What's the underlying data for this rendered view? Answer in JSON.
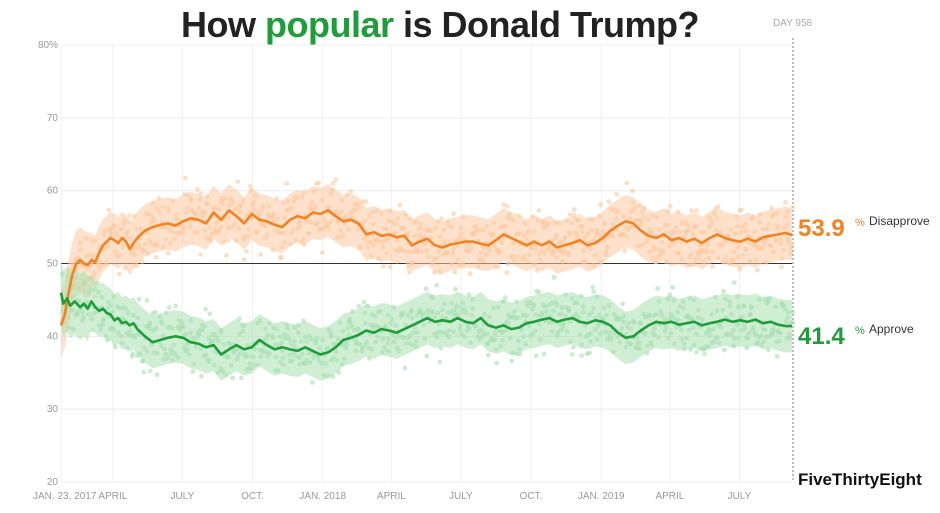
{
  "title": {
    "prefix": "How ",
    "highlight": "popular",
    "suffix": " is Donald Trump?"
  },
  "day_label": "DAY 958",
  "brand": "FiveThirtyEight",
  "colors": {
    "approve": "#1e9d3a",
    "approve_light": "#a8e0b1",
    "disapprove": "#f58220",
    "disapprove_light": "#fcc9a0"
  },
  "chart_data": {
    "type": "line",
    "x_tick_labels": [
      "JAN. 23, 2017",
      "APRIL",
      "JULY",
      "OCT.",
      "JAN. 2018",
      "APRIL",
      "JULY",
      "OCT.",
      "JAN. 2019",
      "APRIL",
      "JULY"
    ],
    "x_tick_days": [
      0,
      68,
      159,
      251,
      343,
      433,
      524,
      616,
      708,
      798,
      889
    ],
    "xlim": [
      0,
      958
    ],
    "y_tick_labels": [
      "20",
      "30",
      "40",
      "50",
      "60",
      "70",
      "80%"
    ],
    "y_ticks": [
      20,
      30,
      40,
      50,
      60,
      70,
      80
    ],
    "ylim": [
      20,
      80
    ],
    "reference_line": 50,
    "grid": true,
    "series": [
      {
        "name": "Disapprove",
        "current_value": "53.9",
        "points": [
          [
            0,
            41.5
          ],
          [
            5,
            43
          ],
          [
            10,
            46
          ],
          [
            15,
            48.5
          ],
          [
            20,
            50
          ],
          [
            25,
            50.5
          ],
          [
            30,
            50
          ],
          [
            35,
            49.8
          ],
          [
            40,
            50.5
          ],
          [
            45,
            50.2
          ],
          [
            50,
            51.5
          ],
          [
            55,
            52.5
          ],
          [
            60,
            53
          ],
          [
            65,
            53.5
          ],
          [
            70,
            53.2
          ],
          [
            75,
            52.8
          ],
          [
            80,
            53.5
          ],
          [
            85,
            53
          ],
          [
            90,
            52
          ],
          [
            95,
            52.8
          ],
          [
            100,
            53.5
          ],
          [
            110,
            54.5
          ],
          [
            120,
            55
          ],
          [
            130,
            55.3
          ],
          [
            140,
            55.5
          ],
          [
            150,
            55.2
          ],
          [
            160,
            55.8
          ],
          [
            170,
            56.2
          ],
          [
            180,
            56
          ],
          [
            190,
            55.5
          ],
          [
            200,
            57
          ],
          [
            210,
            56
          ],
          [
            220,
            57.3
          ],
          [
            230,
            56.5
          ],
          [
            240,
            55.5
          ],
          [
            250,
            56.8
          ],
          [
            260,
            56
          ],
          [
            270,
            55.8
          ],
          [
            280,
            55.3
          ],
          [
            290,
            55
          ],
          [
            300,
            56
          ],
          [
            310,
            56.5
          ],
          [
            320,
            56.2
          ],
          [
            330,
            57
          ],
          [
            340,
            56.8
          ],
          [
            350,
            57.3
          ],
          [
            360,
            56.5
          ],
          [
            370,
            55.8
          ],
          [
            380,
            56
          ],
          [
            390,
            55.5
          ],
          [
            400,
            54
          ],
          [
            410,
            54.3
          ],
          [
            420,
            53.8
          ],
          [
            430,
            54
          ],
          [
            440,
            53.6
          ],
          [
            450,
            53.8
          ],
          [
            460,
            52.5
          ],
          [
            470,
            53
          ],
          [
            480,
            53.4
          ],
          [
            490,
            52.5
          ],
          [
            500,
            52.2
          ],
          [
            510,
            52.6
          ],
          [
            520,
            52.8
          ],
          [
            530,
            53
          ],
          [
            540,
            53
          ],
          [
            550,
            52.7
          ],
          [
            560,
            52.5
          ],
          [
            570,
            53.2
          ],
          [
            580,
            54
          ],
          [
            590,
            53.5
          ],
          [
            600,
            53
          ],
          [
            610,
            52.5
          ],
          [
            620,
            53
          ],
          [
            630,
            52.5
          ],
          [
            640,
            53
          ],
          [
            650,
            52.2
          ],
          [
            660,
            52.5
          ],
          [
            670,
            52.8
          ],
          [
            680,
            53.2
          ],
          [
            690,
            52.5
          ],
          [
            700,
            52.8
          ],
          [
            710,
            53.5
          ],
          [
            720,
            54.5
          ],
          [
            730,
            55.2
          ],
          [
            740,
            55.8
          ],
          [
            750,
            55.5
          ],
          [
            760,
            54.5
          ],
          [
            770,
            53.8
          ],
          [
            780,
            53.5
          ],
          [
            790,
            54
          ],
          [
            800,
            53.2
          ],
          [
            810,
            53.5
          ],
          [
            820,
            53
          ],
          [
            830,
            53.4
          ],
          [
            840,
            52.8
          ],
          [
            850,
            53.5
          ],
          [
            860,
            54
          ],
          [
            870,
            53.5
          ],
          [
            880,
            53.2
          ],
          [
            890,
            53
          ],
          [
            900,
            53.4
          ],
          [
            910,
            53
          ],
          [
            920,
            53.6
          ],
          [
            930,
            53.8
          ],
          [
            940,
            54
          ],
          [
            950,
            54.2
          ],
          [
            958,
            53.9
          ]
        ]
      },
      {
        "name": "Approve",
        "current_value": "41.4",
        "points": [
          [
            0,
            46
          ],
          [
            3,
            44.5
          ],
          [
            8,
            45.2
          ],
          [
            12,
            44.2
          ],
          [
            18,
            44.8
          ],
          [
            25,
            44
          ],
          [
            30,
            44.5
          ],
          [
            35,
            43.8
          ],
          [
            40,
            44.8
          ],
          [
            45,
            44
          ],
          [
            50,
            43.5
          ],
          [
            55,
            43.8
          ],
          [
            60,
            43.2
          ],
          [
            65,
            43
          ],
          [
            70,
            42.2
          ],
          [
            75,
            42.5
          ],
          [
            80,
            41.8
          ],
          [
            85,
            42
          ],
          [
            90,
            41.5
          ],
          [
            95,
            41.8
          ],
          [
            100,
            41
          ],
          [
            110,
            40
          ],
          [
            120,
            39.2
          ],
          [
            130,
            39.5
          ],
          [
            140,
            39.8
          ],
          [
            150,
            40
          ],
          [
            160,
            39.8
          ],
          [
            170,
            39.2
          ],
          [
            180,
            39
          ],
          [
            190,
            38.5
          ],
          [
            200,
            38.8
          ],
          [
            210,
            37.5
          ],
          [
            220,
            38.2
          ],
          [
            230,
            38.8
          ],
          [
            240,
            38.2
          ],
          [
            250,
            38.5
          ],
          [
            260,
            39.5
          ],
          [
            270,
            38.8
          ],
          [
            280,
            38.2
          ],
          [
            290,
            38.5
          ],
          [
            300,
            38.2
          ],
          [
            310,
            38
          ],
          [
            320,
            38.5
          ],
          [
            330,
            38
          ],
          [
            340,
            37.5
          ],
          [
            350,
            37.8
          ],
          [
            360,
            38.5
          ],
          [
            370,
            39.5
          ],
          [
            380,
            39.8
          ],
          [
            390,
            40.2
          ],
          [
            400,
            40.8
          ],
          [
            410,
            40.5
          ],
          [
            420,
            41
          ],
          [
            430,
            40.8
          ],
          [
            440,
            40.5
          ],
          [
            450,
            41
          ],
          [
            460,
            41.5
          ],
          [
            470,
            42
          ],
          [
            480,
            42.5
          ],
          [
            490,
            42
          ],
          [
            500,
            42.2
          ],
          [
            510,
            42
          ],
          [
            520,
            42.5
          ],
          [
            530,
            42
          ],
          [
            540,
            41.8
          ],
          [
            550,
            42.5
          ],
          [
            560,
            41.5
          ],
          [
            570,
            41.2
          ],
          [
            580,
            41.5
          ],
          [
            590,
            41
          ],
          [
            600,
            41.2
          ],
          [
            610,
            41.8
          ],
          [
            620,
            42
          ],
          [
            630,
            42.3
          ],
          [
            640,
            42.5
          ],
          [
            650,
            42
          ],
          [
            660,
            42.3
          ],
          [
            670,
            42.5
          ],
          [
            680,
            42
          ],
          [
            690,
            41.8
          ],
          [
            700,
            42.2
          ],
          [
            710,
            42
          ],
          [
            720,
            41.5
          ],
          [
            730,
            40.5
          ],
          [
            740,
            39.8
          ],
          [
            750,
            40
          ],
          [
            760,
            40.8
          ],
          [
            770,
            41.5
          ],
          [
            780,
            42
          ],
          [
            790,
            41.8
          ],
          [
            800,
            42
          ],
          [
            810,
            41.6
          ],
          [
            820,
            41.8
          ],
          [
            830,
            42
          ],
          [
            840,
            41.5
          ],
          [
            850,
            41.8
          ],
          [
            860,
            42
          ],
          [
            870,
            42.3
          ],
          [
            880,
            42
          ],
          [
            890,
            42.2
          ],
          [
            900,
            42
          ],
          [
            910,
            42.3
          ],
          [
            920,
            41.8
          ],
          [
            930,
            42
          ],
          [
            940,
            41.6
          ],
          [
            950,
            41.4
          ],
          [
            958,
            41.4
          ]
        ]
      }
    ]
  }
}
